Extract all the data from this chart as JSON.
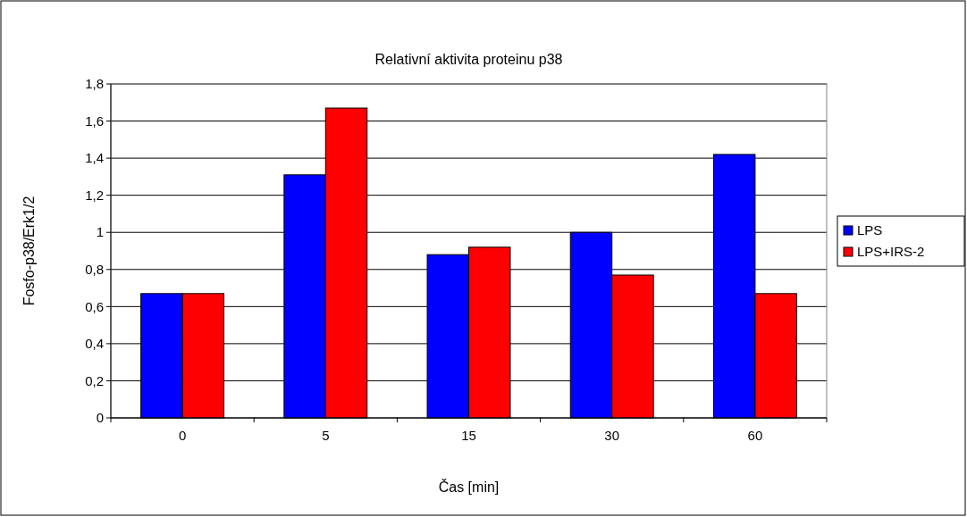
{
  "chart_data": {
    "type": "bar",
    "title": "Relativní aktivita proteinu p38",
    "xlabel": "Čas [min]",
    "ylabel": "Fosfo-p38/Erk1/2",
    "categories": [
      "0",
      "5",
      "15",
      "30",
      "60"
    ],
    "series": [
      {
        "name": "LPS",
        "color": "#0000ff",
        "values": [
          0.67,
          1.31,
          0.88,
          1.0,
          1.42
        ]
      },
      {
        "name": "LPS+IRS-2",
        "color": "#ff0000",
        "values": [
          0.67,
          1.67,
          0.92,
          0.77,
          0.67
        ]
      }
    ],
    "ylim": [
      0,
      1.8
    ],
    "yticks": [
      0,
      {
        "value": 0.2,
        "label": "0,2"
      },
      {
        "value": 0.4,
        "label": "0,4"
      },
      {
        "value": 0.6,
        "label": "0,6"
      },
      {
        "value": 0.8,
        "label": "0,8"
      },
      1,
      {
        "value": 1.2,
        "label": "1,2"
      },
      {
        "value": 1.4,
        "label": "1,4"
      },
      {
        "value": 1.6,
        "label": "1,6"
      },
      {
        "value": 1.8,
        "label": "1,8"
      }
    ],
    "grid": "y",
    "legend": "right"
  }
}
